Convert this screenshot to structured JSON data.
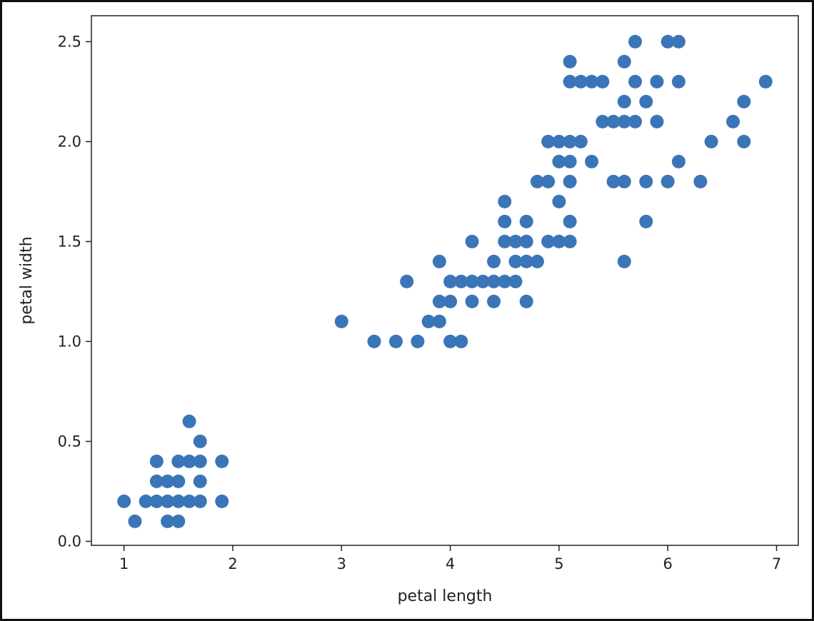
{
  "chart_data": {
    "type": "scatter",
    "title": "",
    "xlabel": "petal length",
    "ylabel": "petal width",
    "xlim": [
      0.7,
      7.2
    ],
    "ylim": [
      -0.02,
      2.63
    ],
    "xticks": [
      "1",
      "2",
      "3",
      "4",
      "5",
      "6",
      "7"
    ],
    "yticks": [
      "0.0",
      "0.5",
      "1.0",
      "1.5",
      "2.0",
      "2.5"
    ],
    "grid": false,
    "legend": "none",
    "marker_color": "#3a75b7",
    "series": [
      {
        "points": [
          [
            1.0,
            0.2
          ],
          [
            1.1,
            0.1
          ],
          [
            1.2,
            0.2
          ],
          [
            1.3,
            0.2
          ],
          [
            1.3,
            0.3
          ],
          [
            1.3,
            0.4
          ],
          [
            1.4,
            0.1
          ],
          [
            1.4,
            0.2
          ],
          [
            1.4,
            0.3
          ],
          [
            1.5,
            0.1
          ],
          [
            1.5,
            0.2
          ],
          [
            1.5,
            0.3
          ],
          [
            1.5,
            0.4
          ],
          [
            1.6,
            0.2
          ],
          [
            1.6,
            0.4
          ],
          [
            1.6,
            0.6
          ],
          [
            1.7,
            0.2
          ],
          [
            1.7,
            0.3
          ],
          [
            1.7,
            0.4
          ],
          [
            1.7,
            0.5
          ],
          [
            1.9,
            0.2
          ],
          [
            1.9,
            0.4
          ],
          [
            3.0,
            1.1
          ],
          [
            3.3,
            1.0
          ],
          [
            3.5,
            1.0
          ],
          [
            3.6,
            1.3
          ],
          [
            3.7,
            1.0
          ],
          [
            3.8,
            1.1
          ],
          [
            3.9,
            1.1
          ],
          [
            3.9,
            1.2
          ],
          [
            3.9,
            1.4
          ],
          [
            4.0,
            1.0
          ],
          [
            4.0,
            1.2
          ],
          [
            4.0,
            1.3
          ],
          [
            4.1,
            1.0
          ],
          [
            4.1,
            1.3
          ],
          [
            4.2,
            1.2
          ],
          [
            4.2,
            1.3
          ],
          [
            4.2,
            1.5
          ],
          [
            4.3,
            1.3
          ],
          [
            4.4,
            1.2
          ],
          [
            4.4,
            1.3
          ],
          [
            4.4,
            1.4
          ],
          [
            4.5,
            1.3
          ],
          [
            4.5,
            1.5
          ],
          [
            4.5,
            1.6
          ],
          [
            4.5,
            1.7
          ],
          [
            4.6,
            1.3
          ],
          [
            4.6,
            1.4
          ],
          [
            4.6,
            1.5
          ],
          [
            4.7,
            1.2
          ],
          [
            4.7,
            1.4
          ],
          [
            4.7,
            1.5
          ],
          [
            4.7,
            1.6
          ],
          [
            4.8,
            1.4
          ],
          [
            4.8,
            1.8
          ],
          [
            4.9,
            1.5
          ],
          [
            4.9,
            1.8
          ],
          [
            4.9,
            2.0
          ],
          [
            5.0,
            1.5
          ],
          [
            5.0,
            1.7
          ],
          [
            5.0,
            1.9
          ],
          [
            5.0,
            2.0
          ],
          [
            5.1,
            1.5
          ],
          [
            5.1,
            1.6
          ],
          [
            5.1,
            1.8
          ],
          [
            5.1,
            1.9
          ],
          [
            5.1,
            2.0
          ],
          [
            5.1,
            2.3
          ],
          [
            5.1,
            2.4
          ],
          [
            5.2,
            2.0
          ],
          [
            5.2,
            2.3
          ],
          [
            5.3,
            1.9
          ],
          [
            5.3,
            2.3
          ],
          [
            5.4,
            2.1
          ],
          [
            5.4,
            2.3
          ],
          [
            5.5,
            1.8
          ],
          [
            5.5,
            2.1
          ],
          [
            5.6,
            1.4
          ],
          [
            5.6,
            1.8
          ],
          [
            5.6,
            2.1
          ],
          [
            5.6,
            2.2
          ],
          [
            5.6,
            2.4
          ],
          [
            5.7,
            2.1
          ],
          [
            5.7,
            2.3
          ],
          [
            5.7,
            2.5
          ],
          [
            5.8,
            1.6
          ],
          [
            5.8,
            1.8
          ],
          [
            5.8,
            2.2
          ],
          [
            5.9,
            2.1
          ],
          [
            5.9,
            2.3
          ],
          [
            6.0,
            1.8
          ],
          [
            6.0,
            2.5
          ],
          [
            6.1,
            1.9
          ],
          [
            6.1,
            2.3
          ],
          [
            6.1,
            2.5
          ],
          [
            6.3,
            1.8
          ],
          [
            6.4,
            2.0
          ],
          [
            6.6,
            2.1
          ],
          [
            6.7,
            2.0
          ],
          [
            6.7,
            2.2
          ],
          [
            6.9,
            2.3
          ]
        ]
      }
    ]
  }
}
